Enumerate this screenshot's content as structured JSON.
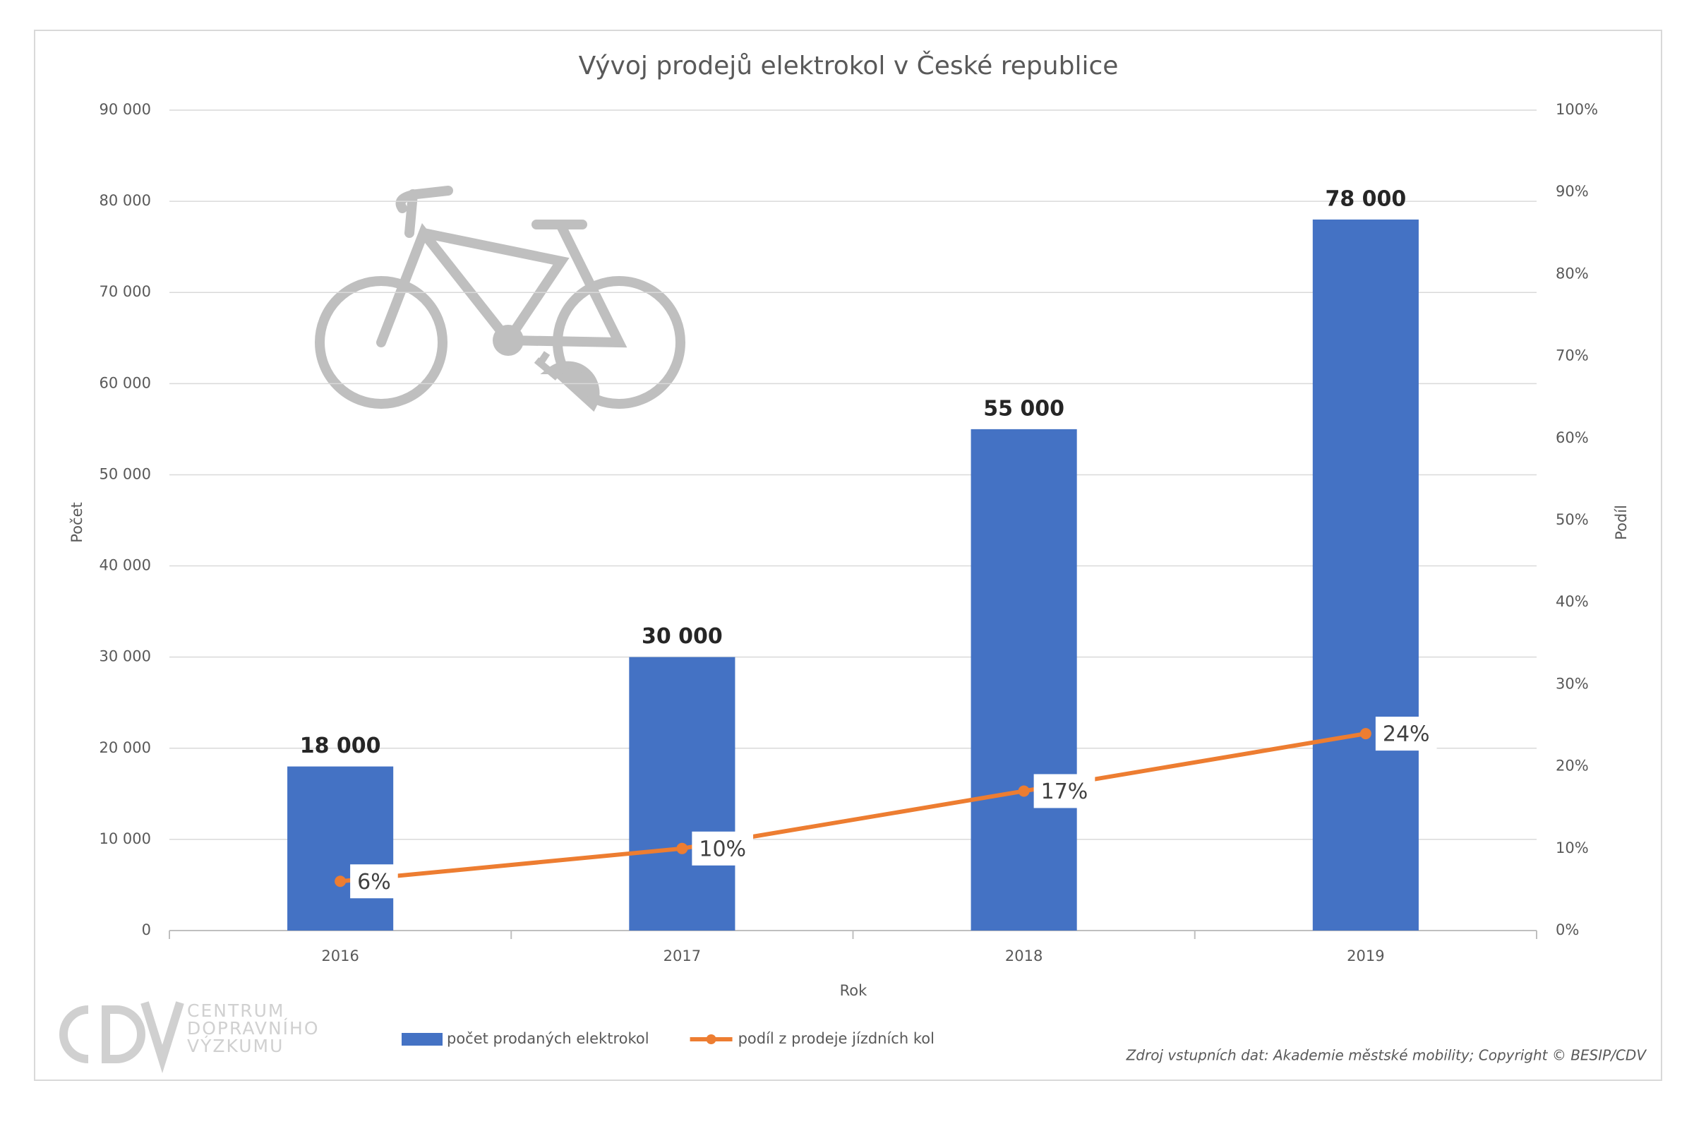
{
  "chart_data": {
    "type": "bar",
    "title": "Vývoj prodejů elektrokol v České republice",
    "x_label": "Rok",
    "y_label": "Počet",
    "y2_label": "Podíl",
    "categories": [
      "2016",
      "2017",
      "2018",
      "2019"
    ],
    "series": [
      {
        "name": "počet prodaných elektrokol",
        "type": "bar",
        "color": "#4472c4",
        "values": [
          18000,
          30000,
          55000,
          78000
        ],
        "value_labels": [
          "18 000",
          "30 000",
          "55 000",
          "78 000"
        ]
      },
      {
        "name": "podíl z prodeje jízdních kol",
        "type": "line",
        "axis": "y2",
        "color": "#ed7d31",
        "values": [
          6,
          10,
          17,
          24
        ],
        "value_labels": [
          "6%",
          "10%",
          "17%",
          "24%"
        ]
      }
    ],
    "ylim": [
      0,
      90000
    ],
    "yticks": [
      0,
      {
        "value": 10000,
        "label": "10 000"
      },
      {
        "value": 20000,
        "label": "20 000"
      },
      {
        "value": 30000,
        "label": "30 000"
      },
      {
        "value": 40000,
        "label": "40 000"
      },
      {
        "value": 50000,
        "label": "50 000"
      },
      {
        "value": 60000,
        "label": "60 000"
      },
      {
        "value": 70000,
        "label": "70 000"
      },
      {
        "value": 80000,
        "label": "80 000"
      },
      {
        "value": 90000,
        "label": "90 000"
      }
    ],
    "y2lim": [
      0,
      100
    ],
    "y2ticks": [
      {
        "value": 0,
        "label": "0%"
      },
      {
        "value": 10,
        "label": "10%"
      },
      {
        "value": 20,
        "label": "20%"
      },
      {
        "value": 30,
        "label": "30%"
      },
      {
        "value": 40,
        "label": "40%"
      },
      {
        "value": 50,
        "label": "50%"
      },
      {
        "value": 60,
        "label": "60%"
      },
      {
        "value": 70,
        "label": "70%"
      },
      {
        "value": 80,
        "label": "80%"
      },
      {
        "value": 90,
        "label": "90%"
      },
      {
        "value": 100,
        "label": "100%"
      }
    ],
    "grid": true,
    "legend": "bottom",
    "source": "Zdroj vstupních dat: Akademie městské mobility; Copyright © BESIP/CDV",
    "logo_text": [
      "CENTRUM",
      "DOPRAVNÍHO",
      "VÝZKUMU"
    ]
  }
}
